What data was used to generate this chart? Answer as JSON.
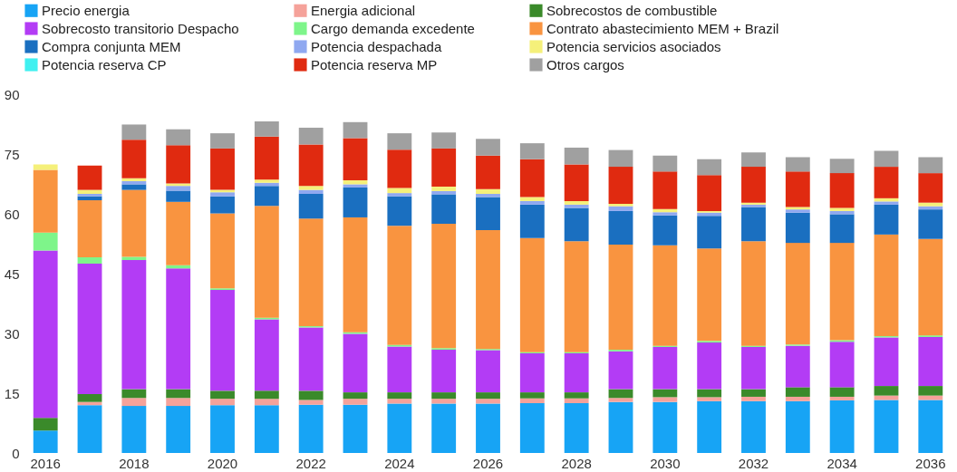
{
  "chart_data": {
    "type": "bar",
    "stacked": true,
    "legend": "top",
    "grid": false,
    "categories": [
      "2016",
      null,
      "2018",
      null,
      "2020",
      null,
      "2022",
      null,
      "2024",
      null,
      "2026",
      null,
      "2028",
      null,
      "2030",
      null,
      "2032",
      null,
      "2034",
      null,
      "2036"
    ],
    "ylim": [
      0,
      90
    ],
    "yticks": [
      0,
      15,
      30,
      45,
      60,
      75,
      90
    ],
    "series": [
      {
        "name": "Precio energia",
        "color": "#17a4f5",
        "values": [
          5.6,
          12.0,
          11.8,
          11.8,
          12.0,
          12.0,
          12.1,
          12.1,
          12.4,
          12.4,
          12.4,
          12.5,
          12.5,
          12.8,
          12.8,
          13.0,
          13.0,
          13.0,
          13.2,
          13.3,
          13.3
        ]
      },
      {
        "name": "Energia adicional",
        "color": "#f5a29a",
        "values": [
          0,
          0.8,
          2.0,
          2.0,
          1.6,
          1.6,
          1.2,
          1.5,
          1.2,
          1.2,
          1.2,
          1.2,
          1.2,
          1.0,
          1.2,
          1.0,
          1.1,
          1.1,
          0.9,
          1.1,
          1.1
        ]
      },
      {
        "name": "Sobrecostos de combustible",
        "color": "#3a8a2a",
        "values": [
          3.2,
          2.0,
          2.2,
          2.2,
          2.0,
          2.0,
          2.3,
          1.6,
          1.6,
          1.6,
          1.6,
          1.5,
          1.5,
          2.2,
          2.0,
          2.0,
          1.9,
          2.4,
          2.4,
          2.4,
          2.4
        ]
      },
      {
        "name": "Sobrecosto transitorio Despacho",
        "color": "#b33cf5",
        "values": [
          42.0,
          32.7,
          32.4,
          30.3,
          25.3,
          17.9,
          15.9,
          14.7,
          11.5,
          10.7,
          10.6,
          9.8,
          9.8,
          9.5,
          10.6,
          11.7,
          10.6,
          10.4,
          11.4,
          12.2,
          12.3
        ]
      },
      {
        "name": "Cargo demanda excedente",
        "color": "#7ef58a",
        "values": [
          4.5,
          1.6,
          0.8,
          0.8,
          0.4,
          0.4,
          0.3,
          0.4,
          0.4,
          0.4,
          0.3,
          0.3,
          0.3,
          0.4,
          0.3,
          0.4,
          0.3,
          0.3,
          0.4,
          0.3,
          0.4
        ]
      },
      {
        "name": "Contrato abastecimiento MEM + Brazil",
        "color": "#f99440",
        "values": [
          15.7,
          14.3,
          16.8,
          15.9,
          18.8,
          28.1,
          27.0,
          28.8,
          29.9,
          31.2,
          29.8,
          28.6,
          27.8,
          26.4,
          25.2,
          23.2,
          26.2,
          25.5,
          24.4,
          25.5,
          24.2
        ]
      },
      {
        "name": "Compra conjunta MEM",
        "color": "#1a6fc0",
        "values": [
          0,
          1.0,
          1.4,
          2.8,
          4.3,
          5.0,
          6.2,
          7.5,
          7.4,
          7.4,
          8.3,
          8.4,
          8.4,
          8.4,
          7.5,
          8.2,
          8.6,
          7.6,
          7.2,
          7.5,
          7.4
        ]
      },
      {
        "name": "Potencia despachada",
        "color": "#8fa8f0",
        "values": [
          0,
          0.6,
          0.8,
          1.2,
          1.0,
          0.8,
          1.0,
          0.8,
          0.8,
          0.8,
          0.8,
          0.9,
          0.8,
          1.2,
          0.8,
          0.8,
          0.6,
          0.8,
          0.8,
          0.8,
          0.8
        ]
      },
      {
        "name": "Potencia servicios asociados",
        "color": "#f5f07a",
        "values": [
          1.4,
          1.0,
          0.7,
          0.6,
          0.6,
          0.8,
          1.0,
          1.0,
          1.3,
          1.1,
          1.2,
          1.0,
          0.9,
          0.6,
          0.8,
          0.4,
          0.5,
          0.6,
          0.8,
          0.8,
          0.9
        ]
      },
      {
        "name": "Potencia reserva CP",
        "color": "#3ff0f0",
        "values": [
          0,
          0,
          0,
          0,
          0,
          0,
          0,
          0,
          0,
          0,
          0,
          0,
          0,
          0,
          0,
          0,
          0,
          0,
          0,
          0,
          0
        ]
      },
      {
        "name": "Potencia reserva MP",
        "color": "#e02a10",
        "values": [
          0,
          6.1,
          9.7,
          9.6,
          10.4,
          10.8,
          10.4,
          10.6,
          9.6,
          9.6,
          8.4,
          9.5,
          9.2,
          9.3,
          9.4,
          9.0,
          9.0,
          8.9,
          8.7,
          7.9,
          7.4
        ]
      },
      {
        "name": "Otros cargos",
        "color": "#a0a0a0",
        "values": [
          0,
          0,
          3.8,
          4.0,
          3.8,
          3.8,
          4.2,
          4.0,
          4.1,
          4.0,
          4.2,
          4.0,
          4.2,
          4.2,
          4.0,
          4.0,
          3.6,
          3.6,
          3.6,
          4.0,
          4.0
        ]
      }
    ]
  }
}
